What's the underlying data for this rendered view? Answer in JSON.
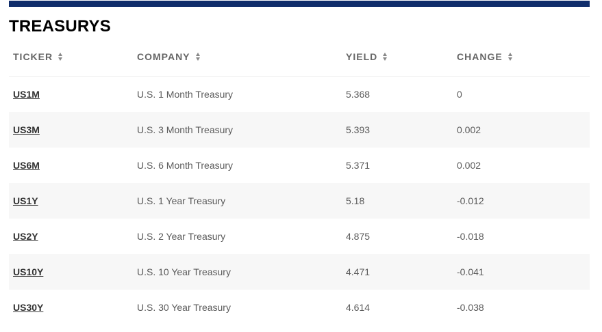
{
  "title": "TREASURYS",
  "columns": {
    "ticker": "TICKER",
    "company": "COMPANY",
    "yield": "YIELD",
    "change": "CHANGE"
  },
  "rows": [
    {
      "ticker": "US1M",
      "company": "U.S. 1 Month Treasury",
      "yield": "5.368",
      "change": "0"
    },
    {
      "ticker": "US3M",
      "company": "U.S. 3 Month Treasury",
      "yield": "5.393",
      "change": "0.002"
    },
    {
      "ticker": "US6M",
      "company": "U.S. 6 Month Treasury",
      "yield": "5.371",
      "change": "0.002"
    },
    {
      "ticker": "US1Y",
      "company": "U.S. 1 Year Treasury",
      "yield": "5.18",
      "change": "-0.012"
    },
    {
      "ticker": "US2Y",
      "company": "U.S. 2 Year Treasury",
      "yield": "4.875",
      "change": "-0.018"
    },
    {
      "ticker": "US10Y",
      "company": "U.S. 10 Year Treasury",
      "yield": "4.471",
      "change": "-0.041"
    },
    {
      "ticker": "US30Y",
      "company": "U.S. 30 Year Treasury",
      "yield": "4.614",
      "change": "-0.038"
    }
  ],
  "colors": {
    "top_bar": "#0f2d6b",
    "row_alt_bg": "#f7f7f7",
    "header_text": "#666666"
  },
  "icons": {
    "sort": "sort-icon"
  }
}
